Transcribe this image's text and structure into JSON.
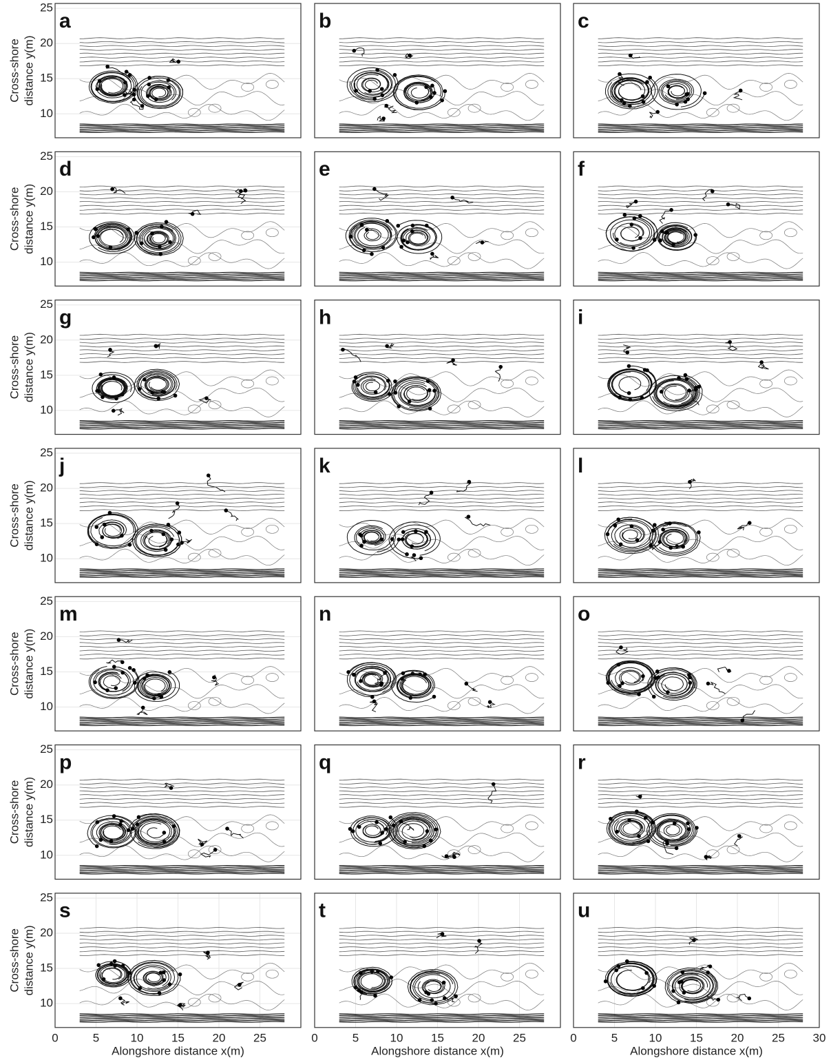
{
  "chart_data": [
    {
      "type": "trajectory",
      "panel_label": "a",
      "ylabel": [
        "Cross-shore",
        "distance y(m)"
      ],
      "ylim": [
        6.6,
        25.7
      ],
      "yticks": [
        10,
        15,
        20,
        25
      ],
      "xlim": [
        0,
        30
      ]
    },
    {
      "type": "trajectory",
      "panel_label": "b",
      "ylim": [
        6.6,
        25.7
      ],
      "xlim": [
        0,
        30
      ]
    },
    {
      "type": "trajectory",
      "panel_label": "c",
      "ylim": [
        6.6,
        25.7
      ],
      "xlim": [
        0,
        30
      ]
    },
    {
      "type": "trajectory",
      "panel_label": "d",
      "ylabel": [
        "Cross-shore",
        "distance y(m)"
      ],
      "ylim": [
        6.6,
        25.7
      ],
      "yticks": [
        10,
        15,
        20,
        25
      ],
      "xlim": [
        0,
        30
      ]
    },
    {
      "type": "trajectory",
      "panel_label": "e",
      "ylim": [
        6.6,
        25.7
      ],
      "xlim": [
        0,
        30
      ]
    },
    {
      "type": "trajectory",
      "panel_label": "f",
      "ylim": [
        6.6,
        25.7
      ],
      "xlim": [
        0,
        30
      ]
    },
    {
      "type": "trajectory",
      "panel_label": "g",
      "ylabel": [
        "Cross-shore",
        "distance y(m)"
      ],
      "ylim": [
        6.6,
        25.7
      ],
      "yticks": [
        10,
        15,
        20,
        25
      ],
      "xlim": [
        0,
        30
      ]
    },
    {
      "type": "trajectory",
      "panel_label": "h",
      "ylim": [
        6.6,
        25.7
      ],
      "xlim": [
        0,
        30
      ]
    },
    {
      "type": "trajectory",
      "panel_label": "i",
      "ylim": [
        6.6,
        25.7
      ],
      "xlim": [
        0,
        30
      ]
    },
    {
      "type": "trajectory",
      "panel_label": "j",
      "ylabel": [
        "Cross-shore",
        "distance y(m)"
      ],
      "ylim": [
        6.6,
        25.7
      ],
      "yticks": [
        10,
        15,
        20,
        25
      ],
      "xlim": [
        0,
        30
      ]
    },
    {
      "type": "trajectory",
      "panel_label": "k",
      "ylim": [
        6.6,
        25.7
      ],
      "xlim": [
        0,
        30
      ]
    },
    {
      "type": "trajectory",
      "panel_label": "l",
      "ylim": [
        6.6,
        25.7
      ],
      "xlim": [
        0,
        30
      ]
    },
    {
      "type": "trajectory",
      "panel_label": "m",
      "ylabel": [
        "Cross-shore",
        "distance y(m)"
      ],
      "ylim": [
        6.6,
        25.7
      ],
      "yticks": [
        10,
        15,
        20,
        25
      ],
      "xlim": [
        0,
        30
      ]
    },
    {
      "type": "trajectory",
      "panel_label": "n",
      "ylim": [
        6.6,
        25.7
      ],
      "xlim": [
        0,
        30
      ]
    },
    {
      "type": "trajectory",
      "panel_label": "o",
      "ylim": [
        6.6,
        25.7
      ],
      "xlim": [
        0,
        30
      ]
    },
    {
      "type": "trajectory",
      "panel_label": "p",
      "ylabel": [
        "Cross-shore",
        "distance y(m)"
      ],
      "ylim": [
        6.6,
        25.7
      ],
      "yticks": [
        10,
        15,
        20,
        25
      ],
      "xlim": [
        0,
        30
      ]
    },
    {
      "type": "trajectory",
      "panel_label": "q",
      "ylim": [
        6.6,
        25.7
      ],
      "xlim": [
        0,
        30
      ]
    },
    {
      "type": "trajectory",
      "panel_label": "r",
      "ylim": [
        6.6,
        25.7
      ],
      "xlim": [
        0,
        30
      ]
    },
    {
      "type": "trajectory",
      "panel_label": "s",
      "ylabel": [
        "Cross-shore",
        "distance y(m)"
      ],
      "ylim": [
        6.6,
        25.7
      ],
      "yticks": [
        10,
        15,
        20,
        25
      ],
      "xlim": [
        0,
        30
      ],
      "xticks": [
        0,
        5,
        10,
        15,
        20,
        25
      ],
      "xlabel": "Alongshore distance x(m)"
    },
    {
      "type": "trajectory",
      "panel_label": "t",
      "ylim": [
        6.6,
        25.7
      ],
      "xlim": [
        0,
        30
      ],
      "xticks": [
        0,
        5,
        10,
        15,
        20,
        25
      ],
      "xlabel": "Alongshore distance x(m)"
    },
    {
      "type": "trajectory",
      "panel_label": "u",
      "ylim": [
        6.6,
        25.7
      ],
      "xlim": [
        0,
        30
      ],
      "xticks": [
        0,
        5,
        10,
        15,
        20,
        25,
        30
      ],
      "xlabel": "Alongshore distance x(m)"
    }
  ]
}
